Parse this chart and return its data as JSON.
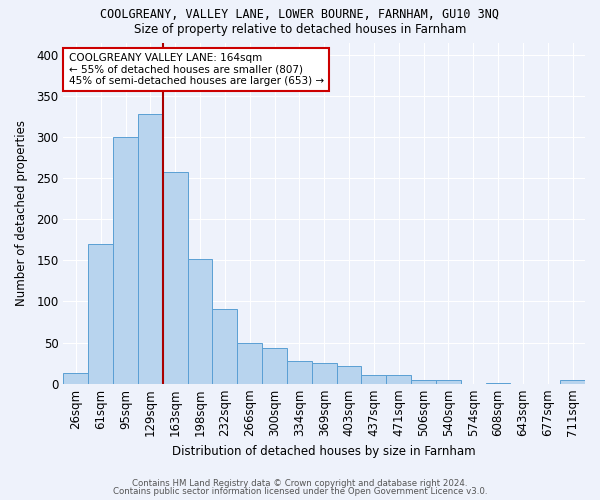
{
  "title1": "COOLGREANY, VALLEY LANE, LOWER BOURNE, FARNHAM, GU10 3NQ",
  "title2": "Size of property relative to detached houses in Farnham",
  "xlabel": "Distribution of detached houses by size in Farnham",
  "ylabel": "Number of detached properties",
  "categories": [
    "26sqm",
    "61sqm",
    "95sqm",
    "129sqm",
    "163sqm",
    "198sqm",
    "232sqm",
    "266sqm",
    "300sqm",
    "334sqm",
    "369sqm",
    "403sqm",
    "437sqm",
    "471sqm",
    "506sqm",
    "540sqm",
    "574sqm",
    "608sqm",
    "643sqm",
    "677sqm",
    "711sqm"
  ],
  "values": [
    13,
    170,
    300,
    328,
    258,
    152,
    91,
    50,
    44,
    27,
    25,
    21,
    11,
    10,
    4,
    5,
    0,
    1,
    0,
    0,
    4
  ],
  "bar_color": "#b8d4ee",
  "bar_edge_color": "#5a9fd4",
  "vline_color": "#aa0000",
  "annotation_text": "COOLGREANY VALLEY LANE: 164sqm\n← 55% of detached houses are smaller (807)\n45% of semi-detached houses are larger (653) →",
  "annotation_box_color": "white",
  "annotation_box_edge": "#cc0000",
  "footnote1": "Contains HM Land Registry data © Crown copyright and database right 2024.",
  "footnote2": "Contains public sector information licensed under the Open Government Licence v3.0.",
  "ylim": [
    0,
    415
  ],
  "yticks": [
    0,
    50,
    100,
    150,
    200,
    250,
    300,
    350,
    400
  ],
  "background_color": "#eef2fb",
  "grid_color": "white"
}
